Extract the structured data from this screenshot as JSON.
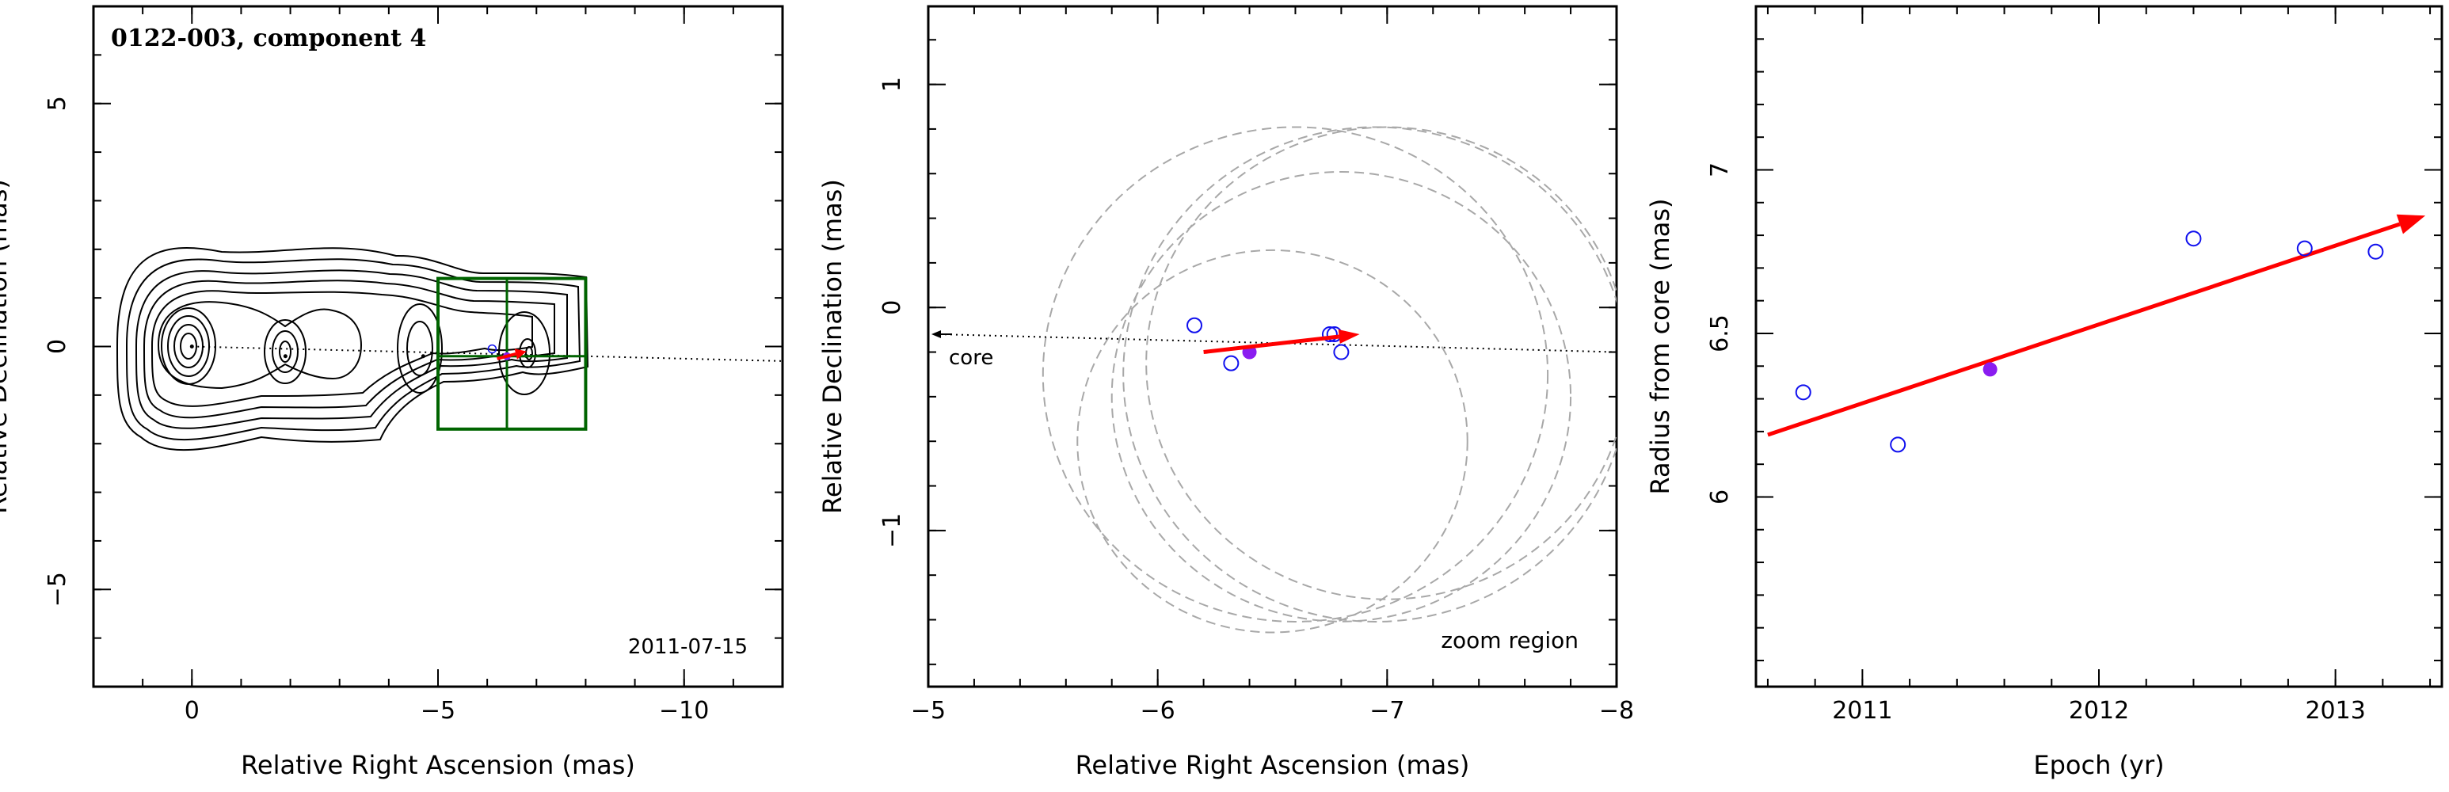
{
  "chart_data": [
    {
      "type": "contour",
      "panel": "map",
      "title": "0122-003, component 4",
      "epoch_label": "2011-07-15",
      "xlabel": "Relative Right Ascension (mas)",
      "ylabel": "Relative Declination (mas)",
      "xlim": [
        2,
        -12
      ],
      "ylim": [
        -7,
        7
      ],
      "xticks": [
        0,
        -5,
        -10
      ],
      "yticks": [
        5,
        0,
        -5
      ],
      "xtick_labels": [
        "0",
        "−5",
        "−10"
      ],
      "ytick_labels": [
        "5",
        "0",
        "−5"
      ],
      "jet_features": [
        {
          "x": 0.0,
          "y": 0.0,
          "kind": "core"
        },
        {
          "x": -1.9,
          "y": -0.2,
          "kind": "knot"
        },
        {
          "x": -4.7,
          "y": -0.2,
          "kind": "knot"
        },
        {
          "x": -6.8,
          "y": -0.2,
          "kind": "knot"
        }
      ],
      "component_position": {
        "x": -6.4,
        "y": -0.2
      },
      "motion_vector": {
        "from": [
          -6.2,
          -0.25
        ],
        "to": [
          -6.8,
          -0.1
        ]
      },
      "zoom_box": {
        "xmin": -8.0,
        "xmax": -5.0,
        "ymin": -1.7,
        "ymax": 1.4
      },
      "ridge_line": {
        "from": [
          0,
          0
        ],
        "to": [
          -12,
          -0.3
        ]
      }
    },
    {
      "type": "scatter",
      "panel": "zoom",
      "annotation": "zoom region",
      "core_label": "core",
      "xlabel": "Relative Right Ascension (mas)",
      "ylabel": "Relative Declination (mas)",
      "xlim": [
        -5,
        -8
      ],
      "ylim": [
        -1.7,
        1.35
      ],
      "xticks": [
        -5,
        -6,
        -7,
        -8
      ],
      "yticks": [
        1,
        0,
        -1
      ],
      "xtick_labels": [
        "−5",
        "−6",
        "−7",
        "−8"
      ],
      "ytick_labels": [
        "1",
        "0",
        "−1"
      ],
      "points": [
        {
          "x": -6.16,
          "y": -0.08,
          "filled": false
        },
        {
          "x": -6.32,
          "y": -0.25,
          "filled": false
        },
        {
          "x": -6.4,
          "y": -0.2,
          "filled": true
        },
        {
          "x": -6.75,
          "y": -0.12,
          "filled": false
        },
        {
          "x": -6.77,
          "y": -0.12,
          "filled": false
        },
        {
          "x": -6.8,
          "y": -0.2,
          "filled": false
        }
      ],
      "beam_ellipses": [
        {
          "cx": -6.6,
          "cy": -0.3,
          "r": 1.1
        },
        {
          "cx": -7.0,
          "cy": -0.25,
          "r": 1.05
        },
        {
          "cx": -6.5,
          "cy": -0.6,
          "r": 0.85
        },
        {
          "cx": -6.8,
          "cy": -0.4,
          "r": 1.0
        },
        {
          "cx": -6.95,
          "cy": -0.3,
          "r": 1.1
        }
      ],
      "motion_vector": {
        "from": [
          -6.2,
          -0.2
        ],
        "to": [
          -6.88,
          -0.12
        ]
      },
      "ridge_line": {
        "from": [
          -5.0,
          -0.12
        ],
        "to": [
          -8.0,
          -0.2
        ]
      }
    },
    {
      "type": "scatter",
      "panel": "radius",
      "xlabel": "Epoch (yr)",
      "ylabel": "Radius from core (mas)",
      "xlim": [
        2010.55,
        2013.45
      ],
      "ylim": [
        5.42,
        7.5
      ],
      "xticks": [
        2011,
        2012,
        2013
      ],
      "yticks": [
        6,
        6.5,
        7
      ],
      "xtick_labels": [
        "2011",
        "2012",
        "2013"
      ],
      "ytick_labels": [
        "6",
        "6.5",
        "7"
      ],
      "points": [
        {
          "x": 2010.75,
          "y": 6.32,
          "filled": false
        },
        {
          "x": 2011.15,
          "y": 6.16,
          "filled": false
        },
        {
          "x": 2011.54,
          "y": 6.39,
          "filled": true
        },
        {
          "x": 2012.4,
          "y": 6.79,
          "filled": false
        },
        {
          "x": 2012.87,
          "y": 6.76,
          "filled": false
        },
        {
          "x": 2013.17,
          "y": 6.75,
          "filled": false
        }
      ],
      "fit_line": {
        "from": [
          2010.6,
          6.19
        ],
        "to": [
          2013.38,
          6.86
        ]
      }
    }
  ],
  "colors": {
    "open_marker": "#1010ee",
    "filled_marker": "#8a1cf0",
    "vector": "#ff0000",
    "zoom_box": "#006400",
    "beam": "#a8a8a8"
  }
}
